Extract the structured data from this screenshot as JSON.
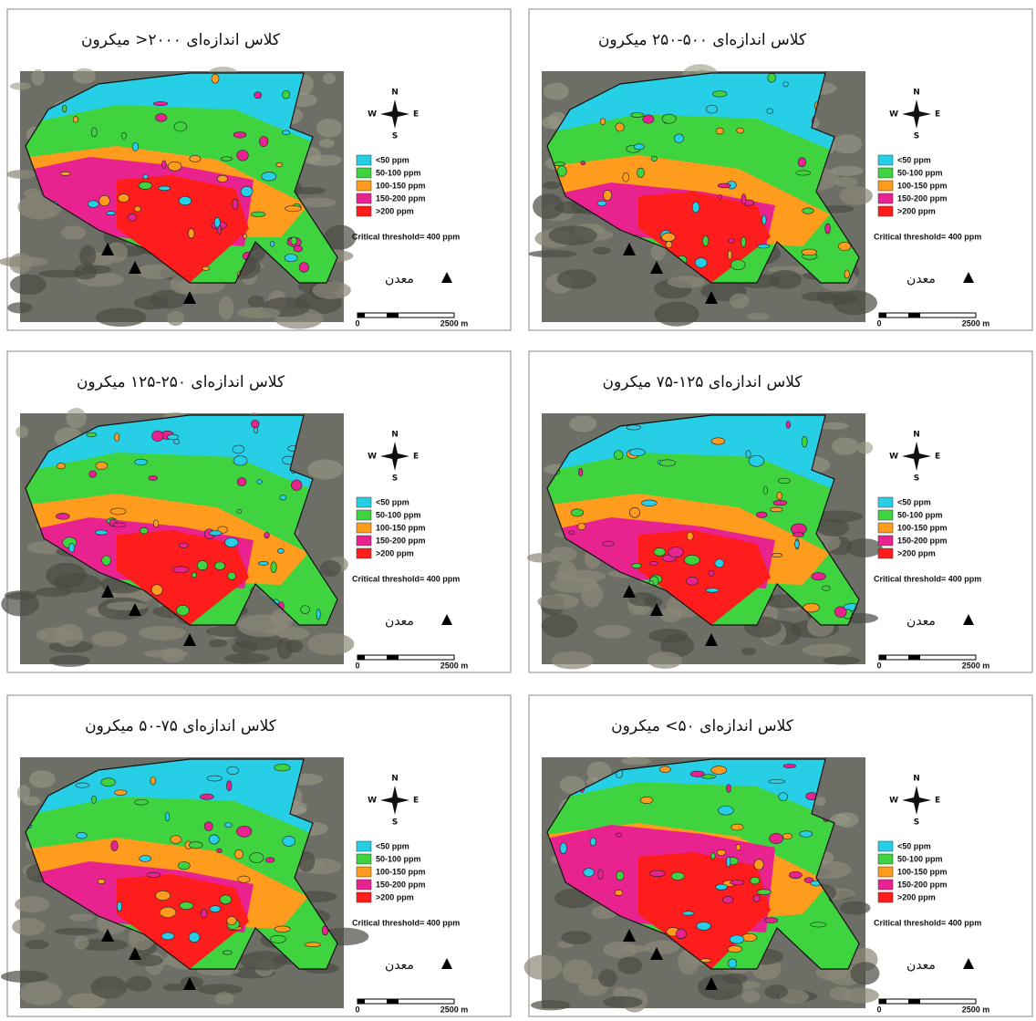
{
  "panels": [
    {
      "title": "کلاس اندازه‌ای ۲۰۰۰< میکرون",
      "compass": {
        "n": "N",
        "w": "W",
        "e": "E",
        "s": "S"
      },
      "legend": [
        "<50 ppm",
        "50-100 ppm",
        "100-150 ppm",
        "150-200 ppm",
        ">200 ppm"
      ],
      "threshold": "Critical threshold= 400 ppm",
      "mine_label": "معدن",
      "scale": {
        "start": "0",
        "end": "2500 m"
      }
    },
    {
      "title": "کلاس اندازه‌ای ۵۰۰-۲۵۰ میکرون",
      "compass": {
        "n": "N",
        "w": "W",
        "e": "E",
        "s": "S"
      },
      "legend": [
        "<50 ppm",
        "50-100 ppm",
        "100-150 ppm",
        "150-200 ppm",
        ">200 ppm"
      ],
      "threshold": "Critical threshold= 400 ppm",
      "mine_label": "معدن",
      "scale": {
        "start": "0",
        "end": "2500 m"
      }
    },
    {
      "title": "کلاس اندازه‌ای ۲۵۰-۱۲۵ میکرون",
      "compass": {
        "n": "N",
        "w": "W",
        "e": "E",
        "s": "S"
      },
      "legend": [
        "<50 ppm",
        "50-100 ppm",
        "100-150 ppm",
        "150-200 ppm",
        ">200 ppm"
      ],
      "threshold": "Critical threshold= 400 ppm",
      "mine_label": "معدن",
      "scale": {
        "start": "0",
        "end": "2500 m"
      }
    },
    {
      "title": "کلاس اندازه‌ای ۱۲۵-۷۵ میکرون",
      "compass": {
        "n": "N",
        "w": "W",
        "e": "E",
        "s": "S"
      },
      "legend": [
        "<50 ppm",
        "50-100 ppm",
        "100-150 ppm",
        "150-200 ppm",
        ">200 ppm"
      ],
      "threshold": "Critical threshold= 400 ppm",
      "mine_label": "معدن",
      "scale": {
        "start": "0",
        "end": "2500 m"
      }
    },
    {
      "title": "کلاس اندازه‌ای ۷۵-۵۰ میکرون",
      "compass": {
        "n": "N",
        "w": "W",
        "e": "E",
        "s": "S"
      },
      "legend": [
        "<50 ppm",
        "50-100 ppm",
        "100-150 ppm",
        "150-200 ppm",
        ">200 ppm"
      ],
      "threshold": "Critical threshold= 400 ppm",
      "mine_label": "معدن",
      "scale": {
        "start": "0",
        "end": "2500 m"
      }
    },
    {
      "title": "کلاس اندازه‌ای ۵۰> میکرون",
      "compass": {
        "n": "N",
        "w": "W",
        "e": "E",
        "s": "S"
      },
      "legend": [
        "<50 ppm",
        "50-100 ppm",
        "100-150 ppm",
        "150-200 ppm",
        ">200 ppm"
      ],
      "threshold": "Critical threshold= 400 ppm",
      "mine_label": "معدن",
      "scale": {
        "start": "0",
        "end": "2500 m"
      }
    }
  ]
}
